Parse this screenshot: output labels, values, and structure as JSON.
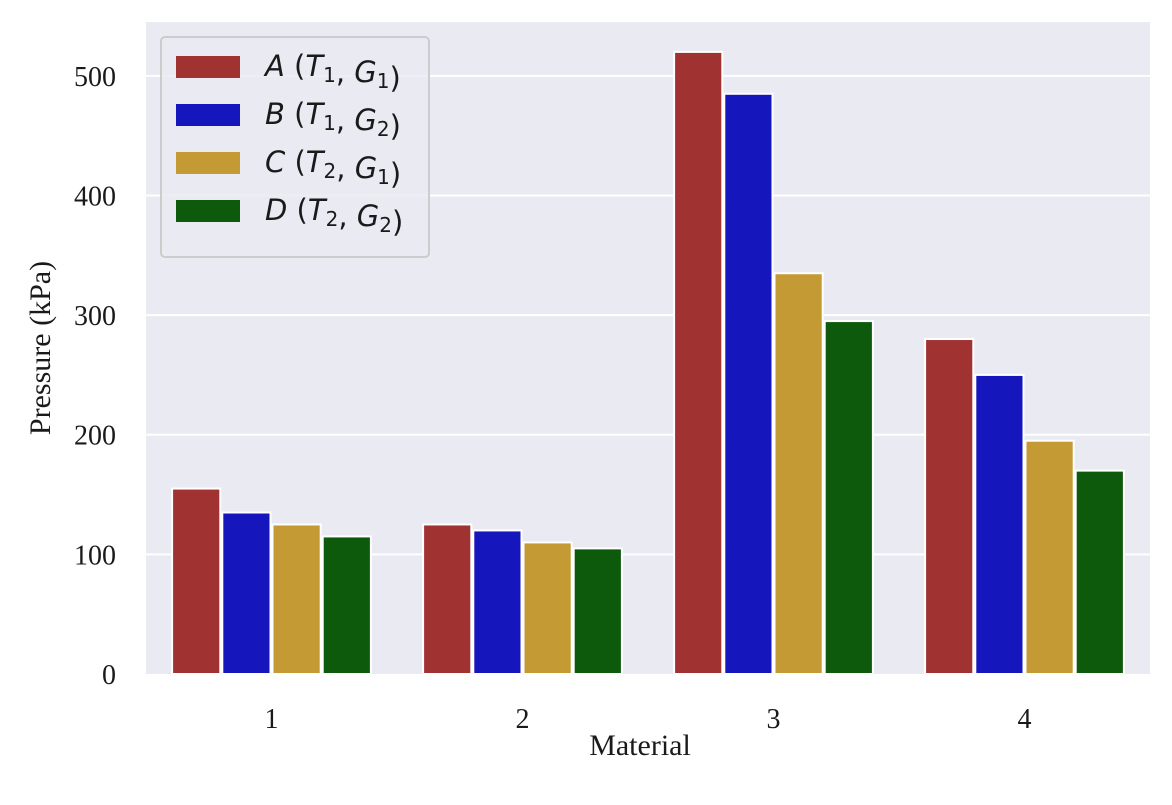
{
  "chart_data": {
    "type": "bar",
    "title": "",
    "xlabel": "Material",
    "ylabel": "Pressure (kPa)",
    "categories": [
      "1",
      "2",
      "3",
      "4"
    ],
    "ylim": [
      0,
      545
    ],
    "yticks": [
      0,
      100,
      200,
      300,
      400,
      500
    ],
    "grid": true,
    "legend_position": "top-left",
    "background_color": "#eaeaf2",
    "series": [
      {
        "name": "A (T1, G1)",
        "letter": "A",
        "t": "1",
        "g": "1",
        "color": "#a13232",
        "values": [
          155,
          125,
          520,
          280
        ]
      },
      {
        "name": "B (T1, G2)",
        "letter": "B",
        "t": "1",
        "g": "2",
        "color": "#1616bd",
        "values": [
          135,
          120,
          485,
          250
        ]
      },
      {
        "name": "C (T2, G1)",
        "letter": "C",
        "t": "2",
        "g": "1",
        "color": "#c49a35",
        "values": [
          125,
          110,
          335,
          195
        ]
      },
      {
        "name": "D (T2, G2)",
        "letter": "D",
        "t": "2",
        "g": "2",
        "color": "#0d5a0d",
        "values": [
          115,
          105,
          295,
          170
        ]
      }
    ]
  }
}
